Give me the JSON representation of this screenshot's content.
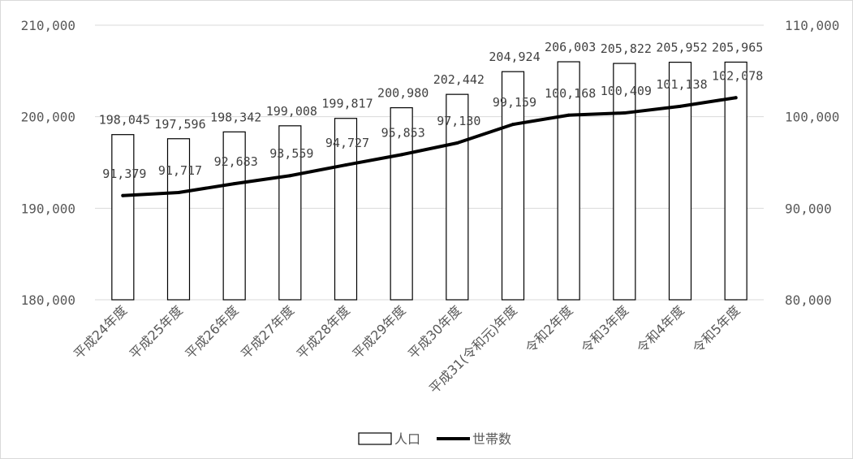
{
  "chart_data": {
    "type": "bar",
    "categories": [
      "平成24年度",
      "平成25年度",
      "平成26年度",
      "平成27年度",
      "平成28年度",
      "平成29年度",
      "平成30年度",
      "平成31(令和元)年度",
      "令和2年度",
      "令和3年度",
      "令和4年度",
      "令和5年度"
    ],
    "series": [
      {
        "name": "人口",
        "type": "bar",
        "axis": "left",
        "values": [
          198045,
          197596,
          198342,
          199008,
          199817,
          200980,
          202442,
          204924,
          206003,
          205822,
          205952,
          205965
        ],
        "labels": [
          "198,045",
          "197,596",
          "198,342",
          "199,008",
          "199,817",
          "200,980",
          "202,442",
          "204,924",
          "206,003",
          "205,822",
          "205,952",
          "205,965"
        ]
      },
      {
        "name": "世帯数",
        "type": "line",
        "axis": "right",
        "values": [
          91379,
          91717,
          92683,
          93559,
          94727,
          95853,
          97130,
          99159,
          100168,
          100409,
          101138,
          102078
        ],
        "labels": [
          "91,379",
          "91,717",
          "92,683",
          "93,559",
          "94,727",
          "95,853",
          "97,130",
          "99,159",
          "100,168",
          "100,409",
          "101,138",
          "102,078"
        ]
      }
    ],
    "y_left": {
      "min": 180000,
      "max": 210000,
      "ticks": [
        "210,000",
        "200,000",
        "190,000",
        "180,000"
      ],
      "tick_values": [
        210000,
        200000,
        190000,
        180000
      ]
    },
    "y_right": {
      "min": 80000,
      "max": 110000,
      "ticks": [
        "110,000",
        "100,000",
        "90,000",
        "80,000"
      ],
      "tick_values": [
        110000,
        100000,
        90000,
        80000
      ]
    },
    "title": "",
    "grid": true,
    "legend_position": "bottom",
    "colors": {
      "bar_fill": "#ffffff",
      "bar_stroke": "#000000",
      "line": "#000000",
      "grid": "#d9d9d9",
      "text": "#595959"
    }
  }
}
